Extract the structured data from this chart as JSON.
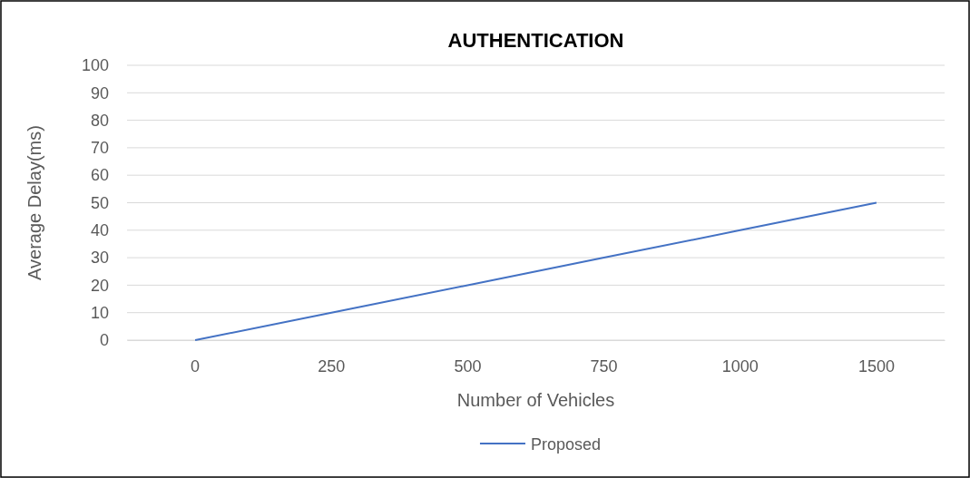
{
  "chart_data": {
    "type": "line",
    "title": "AUTHENTICATION",
    "xlabel": "Number of Vehicles",
    "ylabel": "Average Delay(ms)",
    "categories": [
      "0",
      "250",
      "500",
      "750",
      "1000",
      "1500"
    ],
    "series": [
      {
        "name": "Proposed",
        "color": "#4472c4",
        "values": [
          0,
          10,
          20,
          30,
          40,
          50
        ]
      }
    ],
    "ylim": [
      0,
      100
    ],
    "yticks": [
      0,
      10,
      20,
      30,
      40,
      50,
      60,
      70,
      80,
      90,
      100
    ],
    "grid": "y",
    "legend": "bottom",
    "marker": "none",
    "line_style": "solid"
  }
}
